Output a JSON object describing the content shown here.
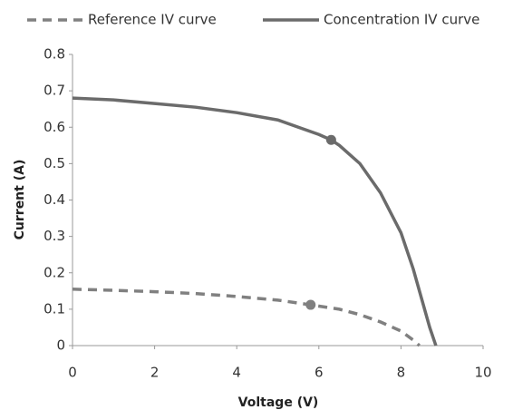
{
  "chart_data": {
    "type": "line",
    "x_label": "Voltage (V)",
    "y_label": "Current (A)",
    "xlim": [
      0,
      10
    ],
    "xticks": [
      0,
      2,
      4,
      6,
      8,
      10
    ],
    "ylim": [
      0,
      0.8
    ],
    "yticks": [
      0,
      0.1,
      0.2,
      0.3,
      0.4,
      0.5,
      0.6,
      0.7,
      0.8
    ],
    "grid": false,
    "legend": "top",
    "series": [
      {
        "name": "Reference IV curve",
        "color": "#808080",
        "style": "dashed",
        "x": [
          0,
          1,
          2,
          3,
          4,
          5,
          5.8,
          6.5,
          7,
          7.5,
          8,
          8.3,
          8.45
        ],
        "values": [
          0.155,
          0.152,
          0.148,
          0.143,
          0.135,
          0.125,
          0.112,
          0.1,
          0.085,
          0.065,
          0.04,
          0.015,
          0
        ],
        "max_power_point": [
          5.8,
          0.112
        ]
      },
      {
        "name": "Concentration IV curve",
        "color": "#6b6b6b",
        "style": "solid",
        "x": [
          0,
          1,
          2,
          3,
          4,
          5,
          5.5,
          6,
          6.3,
          6.5,
          7,
          7.5,
          8,
          8.3,
          8.5,
          8.7,
          8.85
        ],
        "values": [
          0.68,
          0.675,
          0.665,
          0.655,
          0.64,
          0.62,
          0.6,
          0.58,
          0.565,
          0.55,
          0.5,
          0.42,
          0.31,
          0.21,
          0.13,
          0.05,
          0
        ],
        "max_power_point": [
          6.3,
          0.565
        ]
      }
    ]
  }
}
